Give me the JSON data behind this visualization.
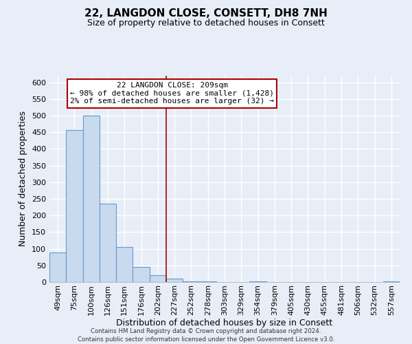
{
  "title": "22, LANGDON CLOSE, CONSETT, DH8 7NH",
  "subtitle": "Size of property relative to detached houses in Consett",
  "xlabel": "Distribution of detached houses by size in Consett",
  "ylabel": "Number of detached properties",
  "bar_labels": [
    "49sqm",
    "75sqm",
    "100sqm",
    "126sqm",
    "151sqm",
    "176sqm",
    "202sqm",
    "227sqm",
    "252sqm",
    "278sqm",
    "303sqm",
    "329sqm",
    "354sqm",
    "379sqm",
    "405sqm",
    "430sqm",
    "455sqm",
    "481sqm",
    "506sqm",
    "532sqm",
    "557sqm"
  ],
  "bar_heights": [
    89,
    456,
    500,
    236,
    105,
    46,
    20,
    10,
    2,
    2,
    0,
    0,
    2,
    0,
    0,
    0,
    0,
    0,
    0,
    0,
    2
  ],
  "bar_color": "#c8daee",
  "bar_edge_color": "#6699cc",
  "annotation_title": "22 LANGDON CLOSE: 209sqm",
  "annotation_line1": "← 98% of detached houses are smaller (1,428)",
  "annotation_line2": "2% of semi-detached houses are larger (32) →",
  "vline_color": "#aa0000",
  "annotation_box_facecolor": "#ffffff",
  "annotation_box_edgecolor": "#aa0000",
  "ylim": [
    0,
    620
  ],
  "yticks": [
    0,
    50,
    100,
    150,
    200,
    250,
    300,
    350,
    400,
    450,
    500,
    550,
    600
  ],
  "background_color": "#e8eef8",
  "grid_color": "#ffffff",
  "title_fontsize": 11,
  "subtitle_fontsize": 9,
  "axis_label_fontsize": 9,
  "tick_fontsize": 8,
  "footer_line1": "Contains HM Land Registry data © Crown copyright and database right 2024.",
  "footer_line2": "Contains public sector information licensed under the Open Government Licence v3.0.",
  "vline_x_index": 6.5
}
